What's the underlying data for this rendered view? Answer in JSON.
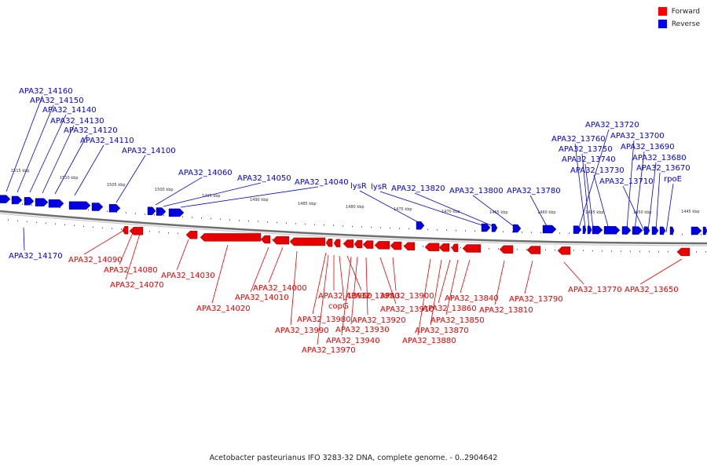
{
  "legend": {
    "forward": {
      "label": "Forward",
      "color": "#ff0000"
    },
    "reverse": {
      "label": "Reverse",
      "color": "#0000ff"
    }
  },
  "caption": "Acetobacter pasteurianus IFO 3283-32 DNA, complete genome. - 0..2904642",
  "colors": {
    "forward": "#e60000",
    "reverse": "#0000e0",
    "backbone": "#666666"
  },
  "ticks": [
    "1515 kbp",
    "1510 kbp",
    "1505 kbp",
    "1500 kbp",
    "1495 kbp",
    "1490 kbp",
    "1485 kbp",
    "1480 kbp",
    "1475 kbp",
    "1470 kbp",
    "1465 kbp",
    "1460 kbp",
    "1455 kbp",
    "1450 kbp",
    "1445 kbp"
  ],
  "reverse_labels": [
    "APA32_14160",
    "APA32_14150",
    "APA32_14140",
    "APA32_14130",
    "APA32_14120",
    "APA32_14110",
    "APA32_14100",
    "APA32_14060",
    "APA32_14050",
    "APA32_14040",
    "lysR",
    "lysR",
    "APA32_13820",
    "APA32_13800",
    "APA32_13780",
    "APA32_13720",
    "APA32_13760",
    "APA32_13700",
    "APA32_13750",
    "APA32_13690",
    "APA32_13740",
    "APA32_13680",
    "APA32_13730",
    "APA32_13670",
    "APA32_13710",
    "rpoE",
    "APA32_14170"
  ],
  "forward_labels": [
    "APA32_14090",
    "APA32_14080",
    "APA32_14070",
    "APA32_14030",
    "APA32_14020",
    "APA32_14010",
    "APA32_14000",
    "APA32_13990",
    "APA32_13980",
    "APA32_13970",
    "APA32_13960",
    "copG",
    "APA32_13950",
    "APA32_13940",
    "APA32_13930",
    "APA32_13920",
    "APA32_13910",
    "APA32_13900",
    "APA32_13880",
    "APA32_13870",
    "APA32_13860",
    "APA32_13850",
    "APA32_13840",
    "APA32_13810",
    "APA32_13790",
    "APA32_13770",
    "APA32_13650"
  ]
}
